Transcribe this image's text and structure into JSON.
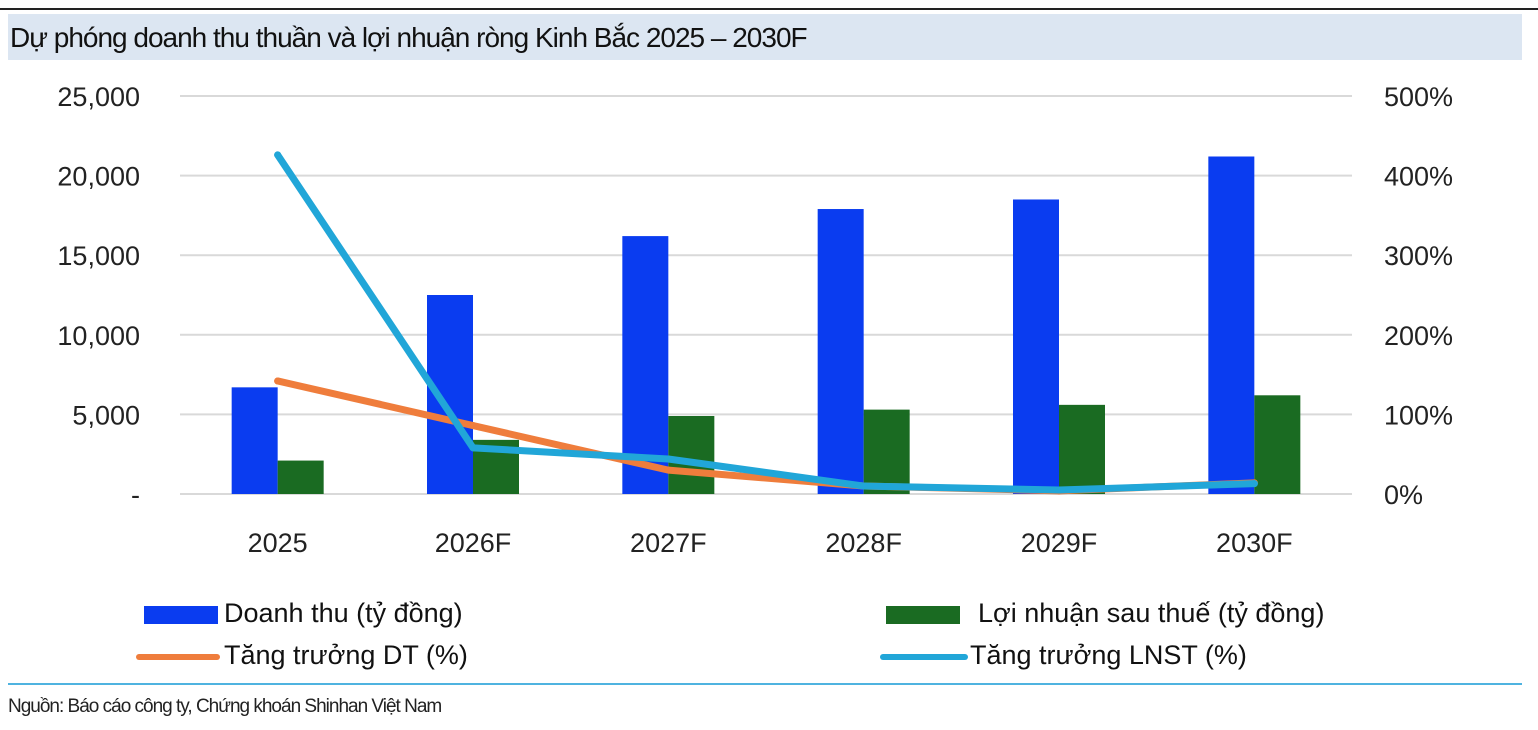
{
  "title": "Dự phóng doanh thu thuần và lợi nhuận ròng Kinh Bắc 2025 – 2030F",
  "source": "Nguồn: Báo cáo công ty, Chứng khoán Shinhan Việt Nam",
  "colors": {
    "revenue": "#0a3cf0",
    "profit": "#1a6b22",
    "rev_growth": "#ef7d3c",
    "profit_growth": "#21a6d8",
    "title_bg": "#dce6f2",
    "grid": "#d9d9d9"
  },
  "chart_data": {
    "type": "bar",
    "categories": [
      "2025",
      "2026F",
      "2027F",
      "2028F",
      "2029F",
      "2030F"
    ],
    "y_left": {
      "ticks": [
        "-",
        "5,000",
        "10,000",
        "15,000",
        "20,000",
        "25,000"
      ],
      "ylim": [
        0,
        25000
      ]
    },
    "y_right": {
      "ticks": [
        "0%",
        "100%",
        "200%",
        "300%",
        "400%",
        "500%"
      ],
      "ylim": [
        0,
        500
      ]
    },
    "series": [
      {
        "name": "Doanh thu (tỷ đồng)",
        "kind": "bar",
        "axis": "left",
        "values": [
          6700,
          12500,
          16200,
          17900,
          18500,
          21200
        ]
      },
      {
        "name": "Lợi nhuận sau thuế (tỷ đồng)",
        "kind": "bar",
        "axis": "left",
        "values": [
          2100,
          3400,
          4900,
          5300,
          5600,
          6200
        ]
      },
      {
        "name": "Tăng trưởng DT (%)",
        "kind": "line",
        "axis": "right",
        "values": [
          142,
          86,
          30,
          10,
          4,
          14
        ]
      },
      {
        "name": "Tăng trưởng LNST (%)",
        "kind": "line",
        "axis": "right",
        "values": [
          426,
          58,
          44,
          10,
          5,
          13
        ]
      }
    ],
    "grid": true,
    "legend": "bottom"
  }
}
